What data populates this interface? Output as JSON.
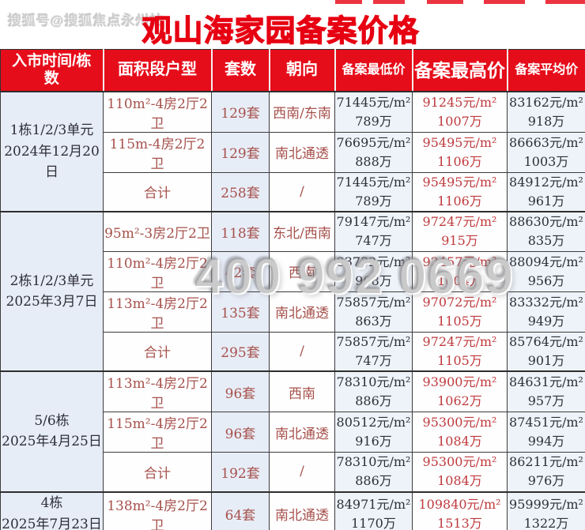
{
  "watermark_top": "搜狐号@搜狐焦点永州站",
  "watermark_phone": "400 992 0669",
  "title": "观山海家园备案价格",
  "table": {
    "headers": [
      "入市时间/栋数",
      "面积段户型",
      "套数",
      "朝向",
      "备案最低价",
      "备案最高价",
      "备案平均价"
    ],
    "groups": [
      {
        "label": [
          "1栋1/2/3单元",
          "2024年12月20日"
        ],
        "rows": [
          {
            "unit": "110m²-4房2厅2卫",
            "count": "129套",
            "orientation": "西南/东南",
            "min": [
              "71445元/m²",
              "789万"
            ],
            "max": [
              "91245元/m²",
              "1007万"
            ],
            "avg": [
              "83162元/m²",
              "918万"
            ]
          },
          {
            "unit": "115m-4房2厅2卫",
            "count": "129套",
            "orientation": "南北通透",
            "min": [
              "76695元/m²",
              "888万"
            ],
            "max": [
              "95495元/m²",
              "1106万"
            ],
            "avg": [
              "86663元/m²",
              "1003万"
            ]
          },
          {
            "unit": "合计",
            "count": "258套",
            "orientation": "/",
            "min": [
              "71445元/m²",
              "789万"
            ],
            "max": [
              "95495元/m²",
              "1106万"
            ],
            "avg": [
              "84912元/m²",
              "961万"
            ]
          }
        ]
      },
      {
        "label": [
          "2栋1/2/3单元",
          "2025年3月7日"
        ],
        "rows": [
          {
            "unit": "95m²-3房2厅2卫",
            "count": "118套",
            "orientation": "东北/西南",
            "min": [
              "79147元/m²",
              "747万"
            ],
            "max": [
              "97247元/m²",
              "915万"
            ],
            "avg": [
              "88630元/m²",
              "835万"
            ]
          },
          {
            "unit": "110m²-4房2厅2卫",
            "count": "42套",
            "orientation": "西南",
            "min": [
              "83732元/m²",
              "908万"
            ],
            "max": [
              "92457元/m²",
              "1004万"
            ],
            "avg": [
              "88094元/m²",
              "956万"
            ]
          },
          {
            "unit": "113m²-4房2厅2卫",
            "count": "135套",
            "orientation": "南北通透",
            "min": [
              "75857元/m²",
              "863万"
            ],
            "max": [
              "97072元/m²",
              "1105万"
            ],
            "avg": [
              "83332元/m²",
              "949万"
            ]
          },
          {
            "unit": "合计",
            "count": "295套",
            "orientation": "/",
            "min": [
              "75857元/m²",
              "747万"
            ],
            "max": [
              "97247元/m²",
              "1105万"
            ],
            "avg": [
              "85764元/m²",
              "901万"
            ]
          }
        ]
      },
      {
        "label": [
          "5/6栋",
          "2025年4月25日"
        ],
        "rows": [
          {
            "unit": "113m²-4房2厅2卫",
            "count": "96套",
            "orientation": "西南",
            "min": [
              "78310元/m²",
              "886万"
            ],
            "max": [
              "93900元/m²",
              "1062万"
            ],
            "avg": [
              "84631元/m²",
              "957万"
            ]
          },
          {
            "unit": "115m²-4房2厅2卫",
            "count": "96套",
            "orientation": "南北通透",
            "min": [
              "80512元/m²",
              "916万"
            ],
            "max": [
              "95300元/m²",
              "1084万"
            ],
            "avg": [
              "87451元/m²",
              "994万"
            ]
          },
          {
            "unit": "合计",
            "count": "192套",
            "orientation": "/",
            "min": [
              "78310元/m²",
              "886万"
            ],
            "max": [
              "95300元/m²",
              "1084万"
            ],
            "avg": [
              "86211元/m²",
              "976万"
            ]
          }
        ]
      },
      {
        "label": [
          "4栋",
          "2025年7月23日"
        ],
        "rows": [
          {
            "unit": "138m²-4房2厅2卫",
            "count": "64套",
            "orientation": "南北通透",
            "min": [
              "84971元/m²",
              "1170万"
            ],
            "max": [
              "109840元/m²",
              "1513万"
            ],
            "avg": [
              "95999元/m²",
              "1322万"
            ]
          }
        ]
      }
    ]
  },
  "colors": {
    "header_red": "#e60d1a",
    "title_red": "#e60012",
    "cell_blue": "#e7edf7",
    "cell_blue_light": "#eef3fa",
    "unit_text": "#a6514c",
    "max_price_text": "#bf3a3d",
    "dark_text": "#2d2e38"
  }
}
